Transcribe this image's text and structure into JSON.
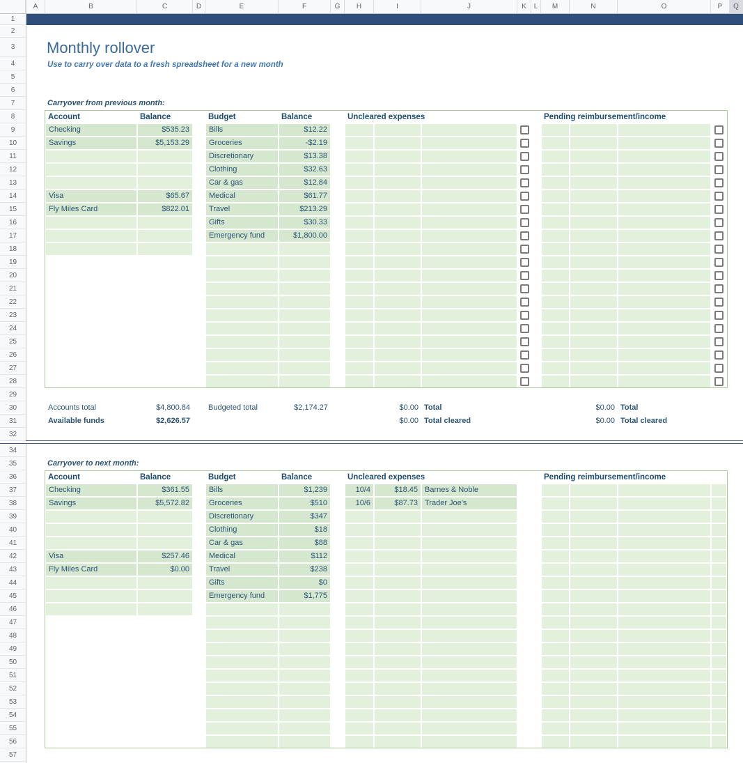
{
  "title": "Monthly rollover",
  "subtitle": "Use to carry over data to a fresh spreadsheet for a new month",
  "column_headers": [
    "A",
    "B",
    "C",
    "D",
    "E",
    "F",
    "G",
    "H",
    "I",
    "J",
    "K",
    "L",
    "M",
    "N",
    "O",
    "P",
    "Q"
  ],
  "row_headers": {
    "first": 1,
    "last": 57,
    "hidden": [
      33
    ]
  },
  "colors": {
    "banner": "#2f4e7c",
    "title": "#3a6b9b",
    "subtitle": "#4478ad",
    "text": "#2b5575",
    "header_text": "#1e4d70",
    "green_fill": "#d6e7d0",
    "green_fill_light": "#e3f0dc",
    "green_border": "#a8c99c",
    "checkbox_border": "#7b7b7b"
  },
  "sections": [
    {
      "label": "Carryover from previous month:",
      "headers": {
        "account": "Account",
        "account_balance": "Balance",
        "budget": "Budget",
        "budget_balance": "Balance",
        "uncleared": "Uncleared expenses",
        "pending": "Pending reimbursement/income"
      },
      "accounts": [
        {
          "name": "Checking",
          "balance": "$535.23"
        },
        {
          "name": "Savings",
          "balance": "$5,153.29"
        },
        null,
        null,
        null,
        {
          "name": "Visa",
          "balance": "$65.67"
        },
        {
          "name": "Fly Miles Card",
          "balance": "$822.01"
        },
        null,
        null,
        null
      ],
      "budget": [
        {
          "name": "Bills",
          "balance": "$12.22"
        },
        {
          "name": "Groceries",
          "balance": "-$2.19"
        },
        {
          "name": "Discretionary",
          "balance": "$13.38"
        },
        {
          "name": "Clothing",
          "balance": "$32.63"
        },
        {
          "name": "Car & gas",
          "balance": "$12.84"
        },
        {
          "name": "Medical",
          "balance": "$61.77"
        },
        {
          "name": "Travel",
          "balance": "$213.29"
        },
        {
          "name": "Gifts",
          "balance": "$30.33"
        },
        {
          "name": "Emergency fund",
          "balance": "$1,800.00"
        }
      ],
      "uncleared": [],
      "pending": [],
      "checkbox_rows": 20,
      "pending_green_column": false
    },
    {
      "label": "Carryover to next month:",
      "headers": {
        "account": "Account",
        "account_balance": "Balance",
        "budget": "Budget",
        "budget_balance": "Balance",
        "uncleared": "Uncleared expenses",
        "pending": "Pending reimbursement/income"
      },
      "accounts": [
        {
          "name": "Checking",
          "balance": "$361.55"
        },
        {
          "name": "Savings",
          "balance": "$5,572.82"
        },
        null,
        null,
        null,
        {
          "name": "Visa",
          "balance": "$257.46"
        },
        {
          "name": "Fly Miles Card",
          "balance": "$0.00"
        },
        null,
        null,
        null
      ],
      "budget": [
        {
          "name": "Bills",
          "balance": "$1,239"
        },
        {
          "name": "Groceries",
          "balance": "$510"
        },
        {
          "name": "Discretionary",
          "balance": "$347"
        },
        {
          "name": "Clothing",
          "balance": "$18"
        },
        {
          "name": "Car & gas",
          "balance": "$88"
        },
        {
          "name": "Medical",
          "balance": "$112"
        },
        {
          "name": "Travel",
          "balance": "$238"
        },
        {
          "name": "Gifts",
          "balance": "$0"
        },
        {
          "name": "Emergency fund",
          "balance": "$1,775"
        }
      ],
      "uncleared": [
        {
          "date": "10/4",
          "amount": "$18.45",
          "vendor": "Barnes & Noble"
        },
        {
          "date": "10/6",
          "amount": "$87.73",
          "vendor": "Trader Joe's"
        }
      ],
      "pending": [],
      "checkbox_rows": 0,
      "pending_green_column": true
    }
  ],
  "totals": {
    "rows": [
      {
        "account_label": "Accounts total",
        "account_value": "$4,800.84",
        "budget_label": "Budgeted total",
        "budget_value": "$2,174.27",
        "uncleared_value": "$0.00",
        "uncleared_label": "Total",
        "pending_value": "$0.00",
        "pending_label": "Total",
        "bold": false
      },
      {
        "account_label": "Available funds",
        "account_value": "$2,626.57",
        "budget_label": "",
        "budget_value": "",
        "uncleared_value": "$0.00",
        "uncleared_label": "Total cleared",
        "pending_value": "$0.00",
        "pending_label": "Total cleared",
        "bold": true
      }
    ]
  }
}
